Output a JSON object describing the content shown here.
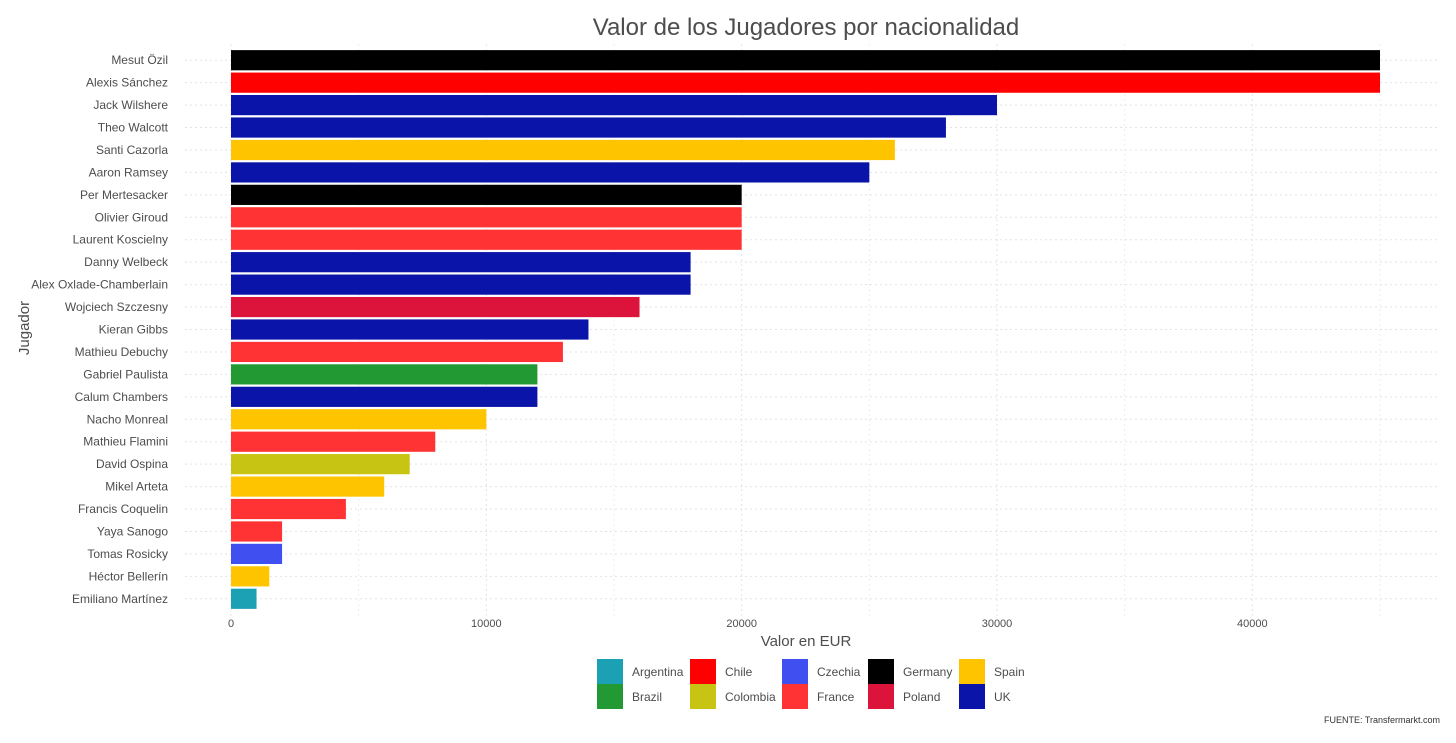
{
  "chart_data": {
    "type": "bar",
    "orientation": "horizontal",
    "title": "Valor de los Jugadores por nacionalidad",
    "xlabel": "Valor en EUR",
    "ylabel": "Jugador",
    "xlim": [
      0,
      45000
    ],
    "xticks": [
      0,
      10000,
      20000,
      30000,
      40000
    ],
    "xtick_labels": [
      "0",
      "10000",
      "20000",
      "30000",
      "40000"
    ],
    "grid": true,
    "legend_position": "bottom",
    "caption": "FUENTE: Transfermarkt.com",
    "legend": [
      {
        "name": "Argentina",
        "color": "#1ca0b4"
      },
      {
        "name": "Brazil",
        "color": "#229933"
      },
      {
        "name": "Chile",
        "color": "#ff0000"
      },
      {
        "name": "Colombia",
        "color": "#c8c414"
      },
      {
        "name": "Czechia",
        "color": "#4050f0"
      },
      {
        "name": "France",
        "color": "#ff3333"
      },
      {
        "name": "Germany",
        "color": "#000000"
      },
      {
        "name": "Poland",
        "color": "#dc143c"
      },
      {
        "name": "Spain",
        "color": "#ffc400"
      },
      {
        "name": "UK",
        "color": "#0a14a8"
      }
    ],
    "players": [
      {
        "name": "Mesut Özil",
        "value": 45000,
        "nationality": "Germany"
      },
      {
        "name": "Alexis Sánchez",
        "value": 45000,
        "nationality": "Chile"
      },
      {
        "name": "Jack Wilshere",
        "value": 30000,
        "nationality": "UK"
      },
      {
        "name": "Theo Walcott",
        "value": 28000,
        "nationality": "UK"
      },
      {
        "name": "Santi Cazorla",
        "value": 26000,
        "nationality": "Spain"
      },
      {
        "name": "Aaron Ramsey",
        "value": 25000,
        "nationality": "UK"
      },
      {
        "name": "Per Mertesacker",
        "value": 20000,
        "nationality": "Germany"
      },
      {
        "name": "Olivier Giroud",
        "value": 20000,
        "nationality": "France"
      },
      {
        "name": "Laurent Koscielny",
        "value": 20000,
        "nationality": "France"
      },
      {
        "name": "Danny Welbeck",
        "value": 18000,
        "nationality": "UK"
      },
      {
        "name": "Alex Oxlade-Chamberlain",
        "value": 18000,
        "nationality": "UK"
      },
      {
        "name": "Wojciech Szczesny",
        "value": 16000,
        "nationality": "Poland"
      },
      {
        "name": "Kieran Gibbs",
        "value": 14000,
        "nationality": "UK"
      },
      {
        "name": "Mathieu Debuchy",
        "value": 13000,
        "nationality": "France"
      },
      {
        "name": "Gabriel Paulista",
        "value": 12000,
        "nationality": "Brazil"
      },
      {
        "name": "Calum Chambers",
        "value": 12000,
        "nationality": "UK"
      },
      {
        "name": "Nacho Monreal",
        "value": 10000,
        "nationality": "Spain"
      },
      {
        "name": "Mathieu Flamini",
        "value": 8000,
        "nationality": "France"
      },
      {
        "name": "David Ospina",
        "value": 7000,
        "nationality": "Colombia"
      },
      {
        "name": "Mikel Arteta",
        "value": 6000,
        "nationality": "Spain"
      },
      {
        "name": "Francis Coquelin",
        "value": 4500,
        "nationality": "France"
      },
      {
        "name": "Yaya Sanogo",
        "value": 2000,
        "nationality": "France"
      },
      {
        "name": "Tomas Rosicky",
        "value": 2000,
        "nationality": "Czechia"
      },
      {
        "name": "Héctor Bellerín",
        "value": 1500,
        "nationality": "Spain"
      },
      {
        "name": "Emiliano Martínez",
        "value": 1000,
        "nationality": "Argentina"
      }
    ]
  }
}
